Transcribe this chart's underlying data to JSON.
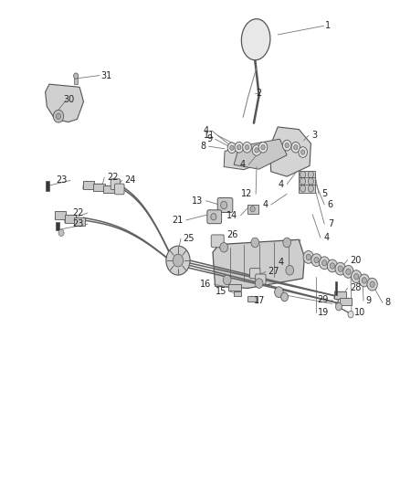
{
  "bg_color": "#ffffff",
  "line_color": "#555555",
  "fig_width": 4.38,
  "fig_height": 5.33,
  "dpi": 100
}
